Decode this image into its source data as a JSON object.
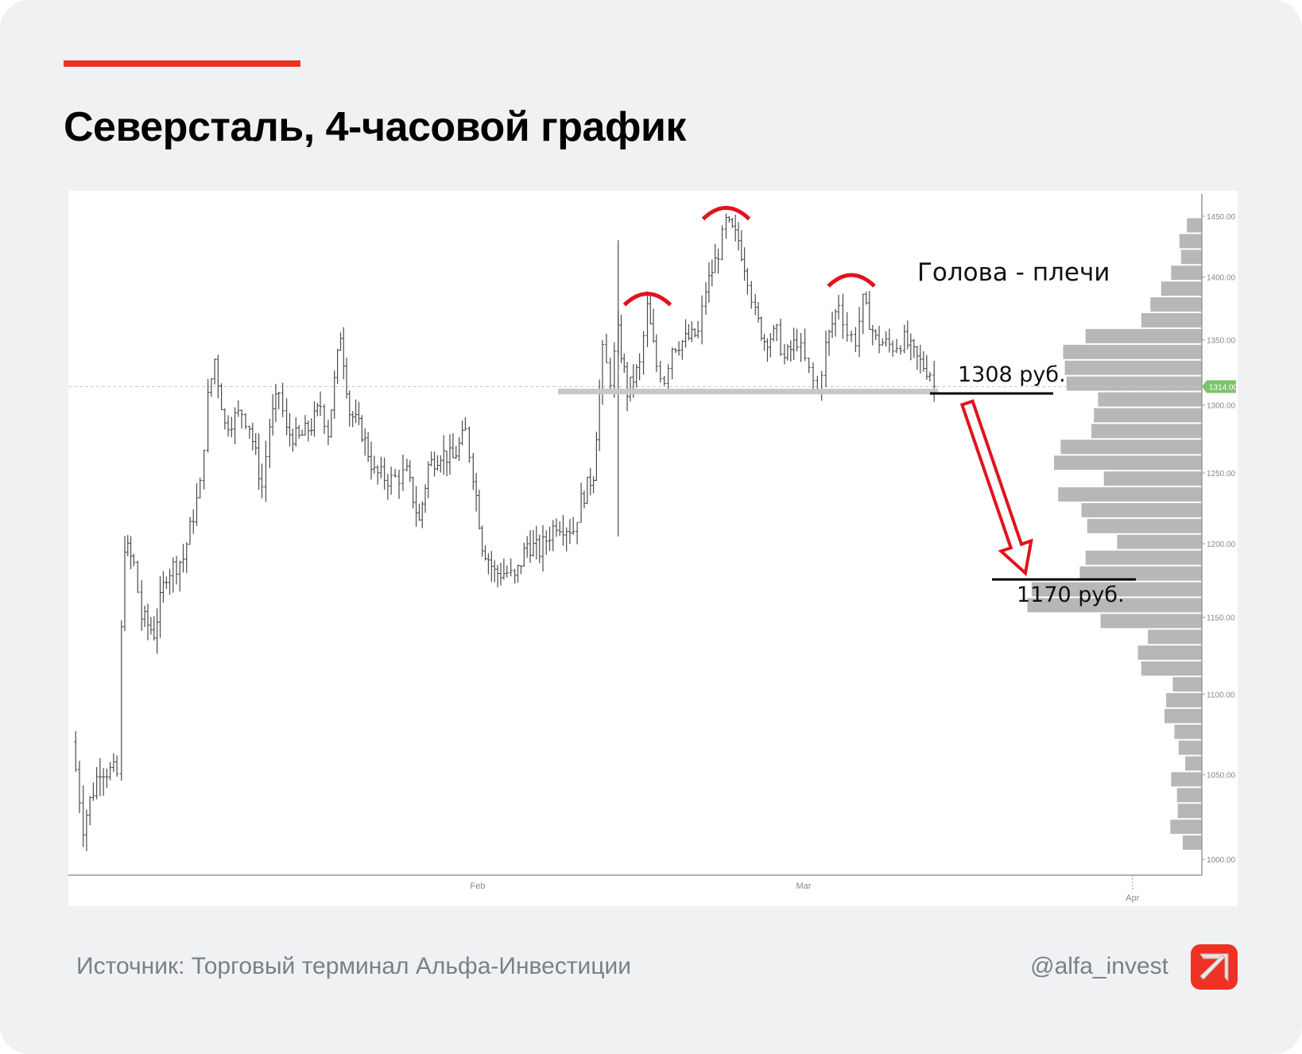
{
  "header": {
    "title": "Северсталь, 4-часовой график"
  },
  "footer": {
    "source": "Источник: Торговый терминал Альфа-Инвестиции",
    "handle": "@alfa_invest"
  },
  "colors": {
    "accent": "#ef3124",
    "annotation": "#e0141e",
    "last_price": "#7dc36b",
    "bars": "#4a4a4a",
    "profile": "#b3b3b3"
  },
  "chart_data": {
    "type": "ohlc",
    "title": "Северсталь, 4-часовой график",
    "x_unit": "days relative to Feb 1",
    "x_ticks": [
      {
        "day": 0,
        "label": "Feb"
      },
      {
        "day": 29,
        "label": "Mar"
      },
      {
        "day": 60,
        "label": "Apr"
      }
    ],
    "y_scale": "log",
    "ylim": [
      1000,
      1450
    ],
    "y_ticks": [
      1450,
      1400,
      1350,
      1300,
      1250,
      1200,
      1150,
      1100,
      1050,
      1000
    ],
    "y_tick_labels": [
      "1450.00",
      "1400.00",
      "1350.00",
      "1300.00",
      "1250.00",
      "1200.00",
      "1150.00",
      "1100.00",
      "1050.00",
      "1000.00"
    ],
    "last_price": 1314,
    "last_price_label": "1314.00",
    "price_path": [
      [
        -36.1,
        1070
      ],
      [
        -35.1,
        1020
      ],
      [
        -33.6,
        1055
      ],
      [
        -32.1,
        1050
      ],
      [
        -31.7,
        1140
      ],
      [
        -31.4,
        1200
      ],
      [
        -30.6,
        1185
      ],
      [
        -29.9,
        1150
      ],
      [
        -28.8,
        1140
      ],
      [
        -27.7,
        1180
      ],
      [
        -26.2,
        1190
      ],
      [
        -24.7,
        1240
      ],
      [
        -24.0,
        1305
      ],
      [
        -23.4,
        1335
      ],
      [
        -22.5,
        1285
      ],
      [
        -21.0,
        1295
      ],
      [
        -20.3,
        1285
      ],
      [
        -19.2,
        1240
      ],
      [
        -18.5,
        1285
      ],
      [
        -17.7,
        1310
      ],
      [
        -17.0,
        1280
      ],
      [
        -15.9,
        1275
      ],
      [
        -14.8,
        1285
      ],
      [
        -14.0,
        1300
      ],
      [
        -13.3,
        1280
      ],
      [
        -12.2,
        1355
      ],
      [
        -11.4,
        1295
      ],
      [
        -10.3,
        1280
      ],
      [
        -9.2,
        1250
      ],
      [
        -7.7,
        1245
      ],
      [
        -6.3,
        1250
      ],
      [
        -5.2,
        1215
      ],
      [
        -4.4,
        1255
      ],
      [
        -3.3,
        1265
      ],
      [
        -2.2,
        1260
      ],
      [
        -1.1,
        1280
      ],
      [
        -0.4,
        1250
      ],
      [
        0.4,
        1200
      ],
      [
        1.5,
        1180
      ],
      [
        2.6,
        1180
      ],
      [
        3.3,
        1175
      ],
      [
        4.4,
        1200
      ],
      [
        5.5,
        1195
      ],
      [
        7.0,
        1215
      ],
      [
        8.5,
        1210
      ],
      [
        9.2,
        1230
      ],
      [
        10.3,
        1250
      ],
      [
        11.1,
        1340
      ],
      [
        11.8,
        1320
      ],
      [
        12.5,
        1355
      ],
      [
        13.3,
        1310
      ],
      [
        14.4,
        1330
      ],
      [
        15.1,
        1375
      ],
      [
        15.9,
        1330
      ],
      [
        16.6,
        1320
      ],
      [
        17.3,
        1345
      ],
      [
        18.5,
        1350
      ],
      [
        19.6,
        1355
      ],
      [
        20.3,
        1390
      ],
      [
        21.4,
        1420
      ],
      [
        22.1,
        1445
      ],
      [
        23.2,
        1430
      ],
      [
        24.0,
        1400
      ],
      [
        24.7,
        1370
      ],
      [
        25.5,
        1350
      ],
      [
        26.6,
        1355
      ],
      [
        27.3,
        1335
      ],
      [
        28.4,
        1350
      ],
      [
        29.5,
        1325
      ],
      [
        30.3,
        1310
      ],
      [
        31.1,
        1345
      ],
      [
        32.3,
        1380
      ],
      [
        33.1,
        1355
      ],
      [
        33.9,
        1350
      ],
      [
        34.6,
        1380
      ],
      [
        35.8,
        1350
      ],
      [
        37.4,
        1345
      ],
      [
        38.5,
        1350
      ],
      [
        39.7,
        1335
      ],
      [
        40.9,
        1325
      ],
      [
        41.3,
        1314
      ]
    ],
    "spikes": [
      {
        "day": 12.5,
        "high": 1430,
        "low": 1205
      }
    ],
    "volume_profile": {
      "price_from": 1449,
      "price_to": 1005,
      "order": "top-to-bottom",
      "volumes": [
        18,
        27,
        25,
        37,
        49,
        62,
        73,
        140,
        167,
        165,
        163,
        125,
        130,
        133,
        170,
        178,
        118,
        173,
        145,
        138,
        102,
        140,
        147,
        205,
        210,
        122,
        65,
        77,
        73,
        35,
        43,
        45,
        33,
        28,
        20,
        37,
        30,
        29,
        38,
        23
      ]
    },
    "annotations": {
      "pattern_label": "Голова - плечи",
      "shoulder_peaks": [
        {
          "day": 15.1,
          "price": 1375,
          "role": "left shoulder"
        },
        {
          "day": 22.1,
          "price": 1445,
          "role": "head"
        },
        {
          "day": 33.5,
          "price": 1390,
          "role": "right shoulder"
        }
      ],
      "neckline_price": 1310,
      "level_1": {
        "price": 1308,
        "label": "1308 руб."
      },
      "level_2": {
        "price": 1170,
        "label": "1170 руб."
      },
      "arrow": {
        "from_price": 1302,
        "to_price": 1180,
        "direction": "down"
      }
    }
  }
}
